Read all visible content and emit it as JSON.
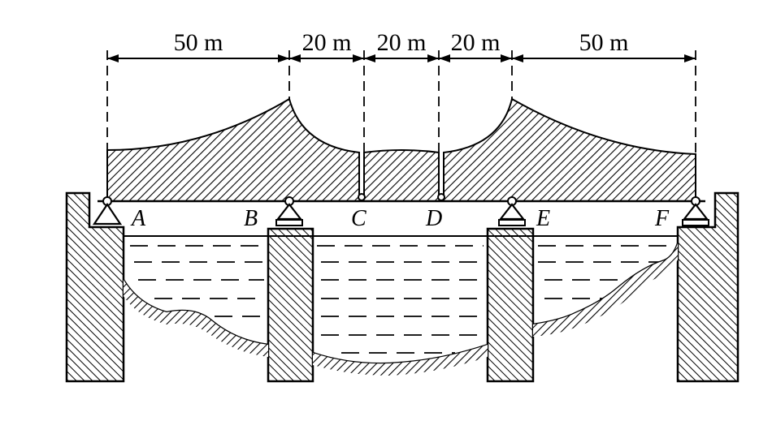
{
  "spans": [
    {
      "label": "50 m"
    },
    {
      "label": "20 m"
    },
    {
      "label": "20 m"
    },
    {
      "label": "20 m"
    },
    {
      "label": "50 m"
    }
  ],
  "points": [
    {
      "label": "A"
    },
    {
      "label": "B"
    },
    {
      "label": "C"
    },
    {
      "label": "D"
    },
    {
      "label": "E"
    },
    {
      "label": "F"
    }
  ]
}
